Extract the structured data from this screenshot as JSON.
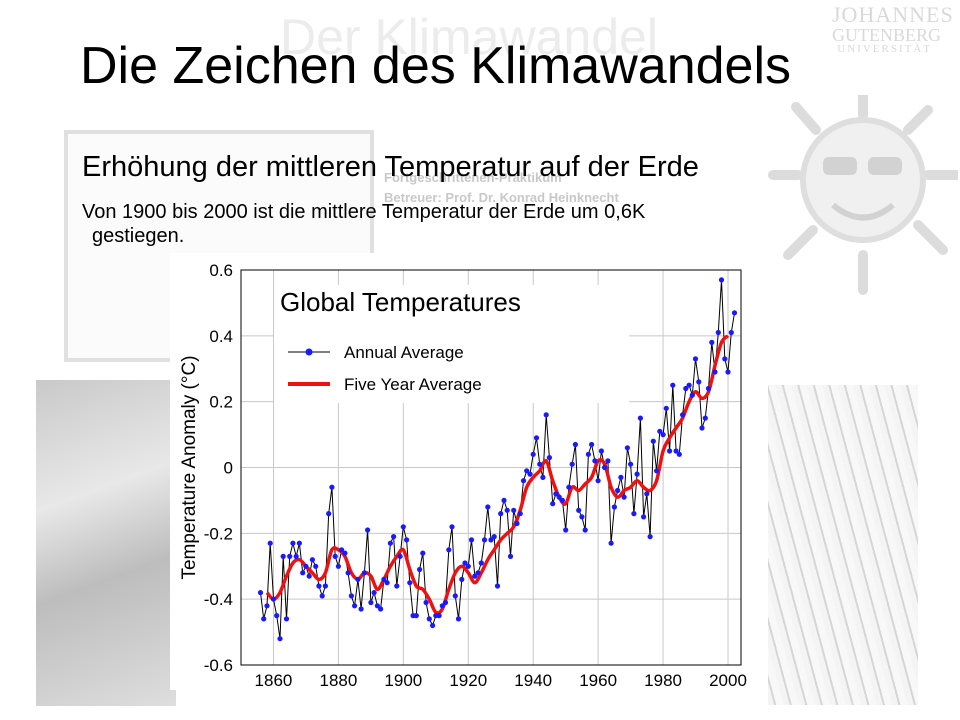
{
  "slide": {
    "title": "Die Zeichen des Klimawandels",
    "subheading": "Erhöhung der mittleren Temperatur auf der Erde",
    "body_line1": "Von 1900 bis 2000 ist die mittlere Temperatur der Erde um 0,6K",
    "body_line2": "gestiegen."
  },
  "background": {
    "watermark_title": "Der Klimawandel",
    "logo_line1": "JOHANNES",
    "logo_line2": "GUTENBERG",
    "logo_line3": "UNIVERSITÄT",
    "card_meta": [
      "Fortgeschrittenen-Praktikum",
      "Betreuer: Prof. Dr. Konrad Heinknecht"
    ]
  },
  "colors": {
    "annual": "#1a1aff",
    "five_year": "#ee1111",
    "line": "#000000"
  },
  "chart_data": {
    "type": "line",
    "title": "Global Temperatures",
    "xlabel": "",
    "ylabel": "Temperature Anomaly (°C)",
    "xlim": [
      1850,
      2004
    ],
    "ylim": [
      -0.6,
      0.6
    ],
    "xticks": [
      1860,
      1880,
      1900,
      1920,
      1940,
      1960,
      1980,
      2000
    ],
    "yticks": [
      0.6,
      0.4,
      0.2,
      0,
      -0.2,
      -0.4,
      -0.6
    ],
    "ytick_labels": [
      "0.6",
      "0.4",
      "0.2",
      "0",
      "-0.2",
      "-0.4",
      "-0.6"
    ],
    "grid": true,
    "legend_position": "top-left",
    "series": [
      {
        "name": "Annual Average",
        "style": "line-with-markers",
        "x": [
          1856,
          1857,
          1858,
          1859,
          1860,
          1861,
          1862,
          1863,
          1864,
          1865,
          1866,
          1867,
          1868,
          1869,
          1870,
          1871,
          1872,
          1873,
          1874,
          1875,
          1876,
          1877,
          1878,
          1879,
          1880,
          1881,
          1882,
          1883,
          1884,
          1885,
          1886,
          1887,
          1888,
          1889,
          1890,
          1891,
          1892,
          1893,
          1894,
          1895,
          1896,
          1897,
          1898,
          1899,
          1900,
          1901,
          1902,
          1903,
          1904,
          1905,
          1906,
          1907,
          1908,
          1909,
          1910,
          1911,
          1912,
          1913,
          1914,
          1915,
          1916,
          1917,
          1918,
          1919,
          1920,
          1921,
          1922,
          1923,
          1924,
          1925,
          1926,
          1927,
          1928,
          1929,
          1930,
          1931,
          1932,
          1933,
          1934,
          1935,
          1936,
          1937,
          1938,
          1939,
          1940,
          1941,
          1942,
          1943,
          1944,
          1945,
          1946,
          1947,
          1948,
          1949,
          1950,
          1951,
          1952,
          1953,
          1954,
          1955,
          1956,
          1957,
          1958,
          1959,
          1960,
          1961,
          1962,
          1963,
          1964,
          1965,
          1966,
          1967,
          1968,
          1969,
          1970,
          1971,
          1972,
          1973,
          1974,
          1975,
          1976,
          1977,
          1978,
          1979,
          1980,
          1981,
          1982,
          1983,
          1984,
          1985,
          1986,
          1987,
          1988,
          1989,
          1990,
          1991,
          1992,
          1993,
          1994,
          1995,
          1996,
          1997,
          1998,
          1999,
          2000,
          2001,
          2002
        ],
        "values": [
          -0.38,
          -0.46,
          -0.42,
          -0.23,
          -0.4,
          -0.45,
          -0.52,
          -0.27,
          -0.46,
          -0.27,
          -0.23,
          -0.27,
          -0.23,
          -0.32,
          -0.3,
          -0.33,
          -0.28,
          -0.3,
          -0.36,
          -0.39,
          -0.36,
          -0.14,
          -0.06,
          -0.27,
          -0.3,
          -0.25,
          -0.26,
          -0.32,
          -0.39,
          -0.42,
          -0.34,
          -0.43,
          -0.32,
          -0.19,
          -0.41,
          -0.38,
          -0.42,
          -0.43,
          -0.34,
          -0.35,
          -0.23,
          -0.21,
          -0.36,
          -0.27,
          -0.18,
          -0.22,
          -0.35,
          -0.45,
          -0.45,
          -0.31,
          -0.26,
          -0.41,
          -0.46,
          -0.48,
          -0.45,
          -0.45,
          -0.42,
          -0.41,
          -0.25,
          -0.18,
          -0.39,
          -0.46,
          -0.34,
          -0.29,
          -0.3,
          -0.22,
          -0.33,
          -0.32,
          -0.29,
          -0.22,
          -0.12,
          -0.22,
          -0.21,
          -0.36,
          -0.14,
          -0.1,
          -0.13,
          -0.27,
          -0.13,
          -0.17,
          -0.14,
          -0.04,
          -0.01,
          -0.02,
          0.04,
          0.09,
          0.01,
          -0.03,
          0.16,
          0.03,
          -0.11,
          -0.08,
          -0.09,
          -0.1,
          -0.19,
          -0.06,
          0.01,
          0.07,
          -0.13,
          -0.15,
          -0.19,
          0.04,
          0.07,
          0.02,
          -0.04,
          0.05,
          0.0,
          0.02,
          -0.23,
          -0.12,
          -0.07,
          -0.03,
          -0.09,
          0.06,
          0.01,
          -0.14,
          -0.02,
          0.15,
          -0.15,
          -0.08,
          -0.21,
          0.08,
          -0.01,
          0.11,
          0.1,
          0.18,
          0.05,
          0.25,
          0.05,
          0.04,
          0.16,
          0.24,
          0.25,
          0.22,
          0.33,
          0.26,
          0.12,
          0.15,
          0.24,
          0.38,
          0.29,
          0.41,
          0.57,
          0.33,
          0.29,
          0.41,
          0.47
        ]
      },
      {
        "name": "Five Year Average",
        "style": "smooth-line",
        "x": [
          1858,
          1860,
          1862,
          1864,
          1866,
          1868,
          1870,
          1872,
          1874,
          1876,
          1878,
          1880,
          1882,
          1884,
          1886,
          1888,
          1890,
          1892,
          1894,
          1896,
          1898,
          1900,
          1902,
          1904,
          1906,
          1908,
          1910,
          1912,
          1914,
          1916,
          1918,
          1920,
          1922,
          1924,
          1926,
          1928,
          1930,
          1932,
          1934,
          1936,
          1938,
          1940,
          1942,
          1944,
          1946,
          1948,
          1950,
          1952,
          1954,
          1956,
          1958,
          1960,
          1962,
          1964,
          1966,
          1968,
          1970,
          1972,
          1974,
          1976,
          1978,
          1980,
          1982,
          1984,
          1986,
          1988,
          1990,
          1992,
          1994,
          1996,
          1998,
          2000
        ],
        "values": [
          -0.38,
          -0.4,
          -0.38,
          -0.33,
          -0.29,
          -0.28,
          -0.3,
          -0.32,
          -0.34,
          -0.32,
          -0.25,
          -0.25,
          -0.27,
          -0.32,
          -0.34,
          -0.32,
          -0.33,
          -0.37,
          -0.34,
          -0.3,
          -0.27,
          -0.25,
          -0.31,
          -0.36,
          -0.37,
          -0.4,
          -0.44,
          -0.43,
          -0.37,
          -0.32,
          -0.3,
          -0.32,
          -0.35,
          -0.32,
          -0.28,
          -0.25,
          -0.22,
          -0.2,
          -0.18,
          -0.13,
          -0.06,
          -0.03,
          -0.01,
          0.02,
          -0.04,
          -0.09,
          -0.11,
          -0.06,
          -0.07,
          -0.05,
          -0.03,
          0.02,
          0.01,
          -0.06,
          -0.09,
          -0.07,
          -0.06,
          -0.04,
          -0.06,
          -0.07,
          -0.04,
          0.05,
          0.09,
          0.12,
          0.15,
          0.2,
          0.23,
          0.21,
          0.23,
          0.31,
          0.38,
          0.4
        ]
      }
    ]
  }
}
